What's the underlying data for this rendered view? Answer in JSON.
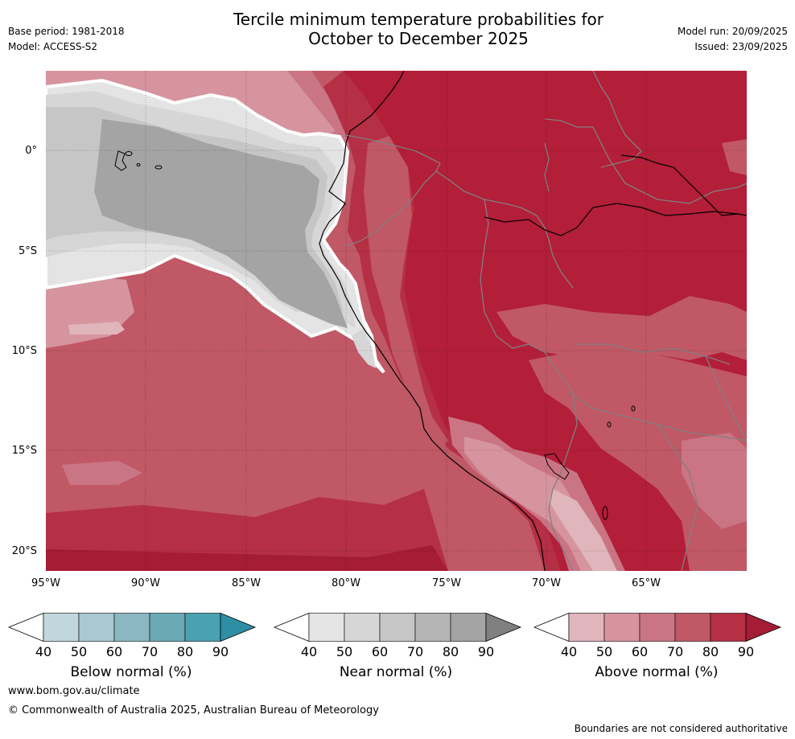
{
  "header": {
    "title_line1": "Tercile minimum temperature probabilities for",
    "title_line2": "October to December 2025",
    "base_period": "Base period: 1981-2018",
    "model": "Model: ACCESS-S2",
    "model_run": "Model run: 20/09/2025",
    "issued": "Issued: 23/09/2025"
  },
  "map": {
    "lat_labels": [
      "0°",
      "5°S",
      "10°S",
      "15°S",
      "20°S"
    ],
    "lon_labels": [
      "95°W",
      "90°W",
      "85°W",
      "80°W",
      "75°W",
      "70°W",
      "65°W"
    ]
  },
  "legends": [
    {
      "label": "Below normal (%)",
      "ticks": [
        "40",
        "50",
        "60",
        "70",
        "80",
        "90"
      ],
      "colors": [
        "#ffffff",
        "#c0d7dd",
        "#a8c9d0",
        "#8bb7c2",
        "#6aa9b6",
        "#4aa1b1",
        "#2e8ea3"
      ]
    },
    {
      "label": "Near normal (%)",
      "ticks": [
        "40",
        "50",
        "60",
        "70",
        "80",
        "90"
      ],
      "colors": [
        "#ffffff",
        "#e4e4e4",
        "#d6d6d6",
        "#c6c6c6",
        "#b5b5b5",
        "#a4a4a4",
        "#808080"
      ]
    },
    {
      "label": "Above normal (%)",
      "ticks": [
        "40",
        "50",
        "60",
        "70",
        "80",
        "90"
      ],
      "colors": [
        "#ffffff",
        "#e0b5bc",
        "#d6949e",
        "#ca7584",
        "#c05866",
        "#b52f45",
        "#a51c35"
      ]
    }
  ],
  "footer": {
    "url": "www.bom.gov.au/climate",
    "copyright": "© Commonwealth of Australia 2025, Australian Bureau of Meteorology",
    "note": "Boundaries are not considered authoritative"
  }
}
